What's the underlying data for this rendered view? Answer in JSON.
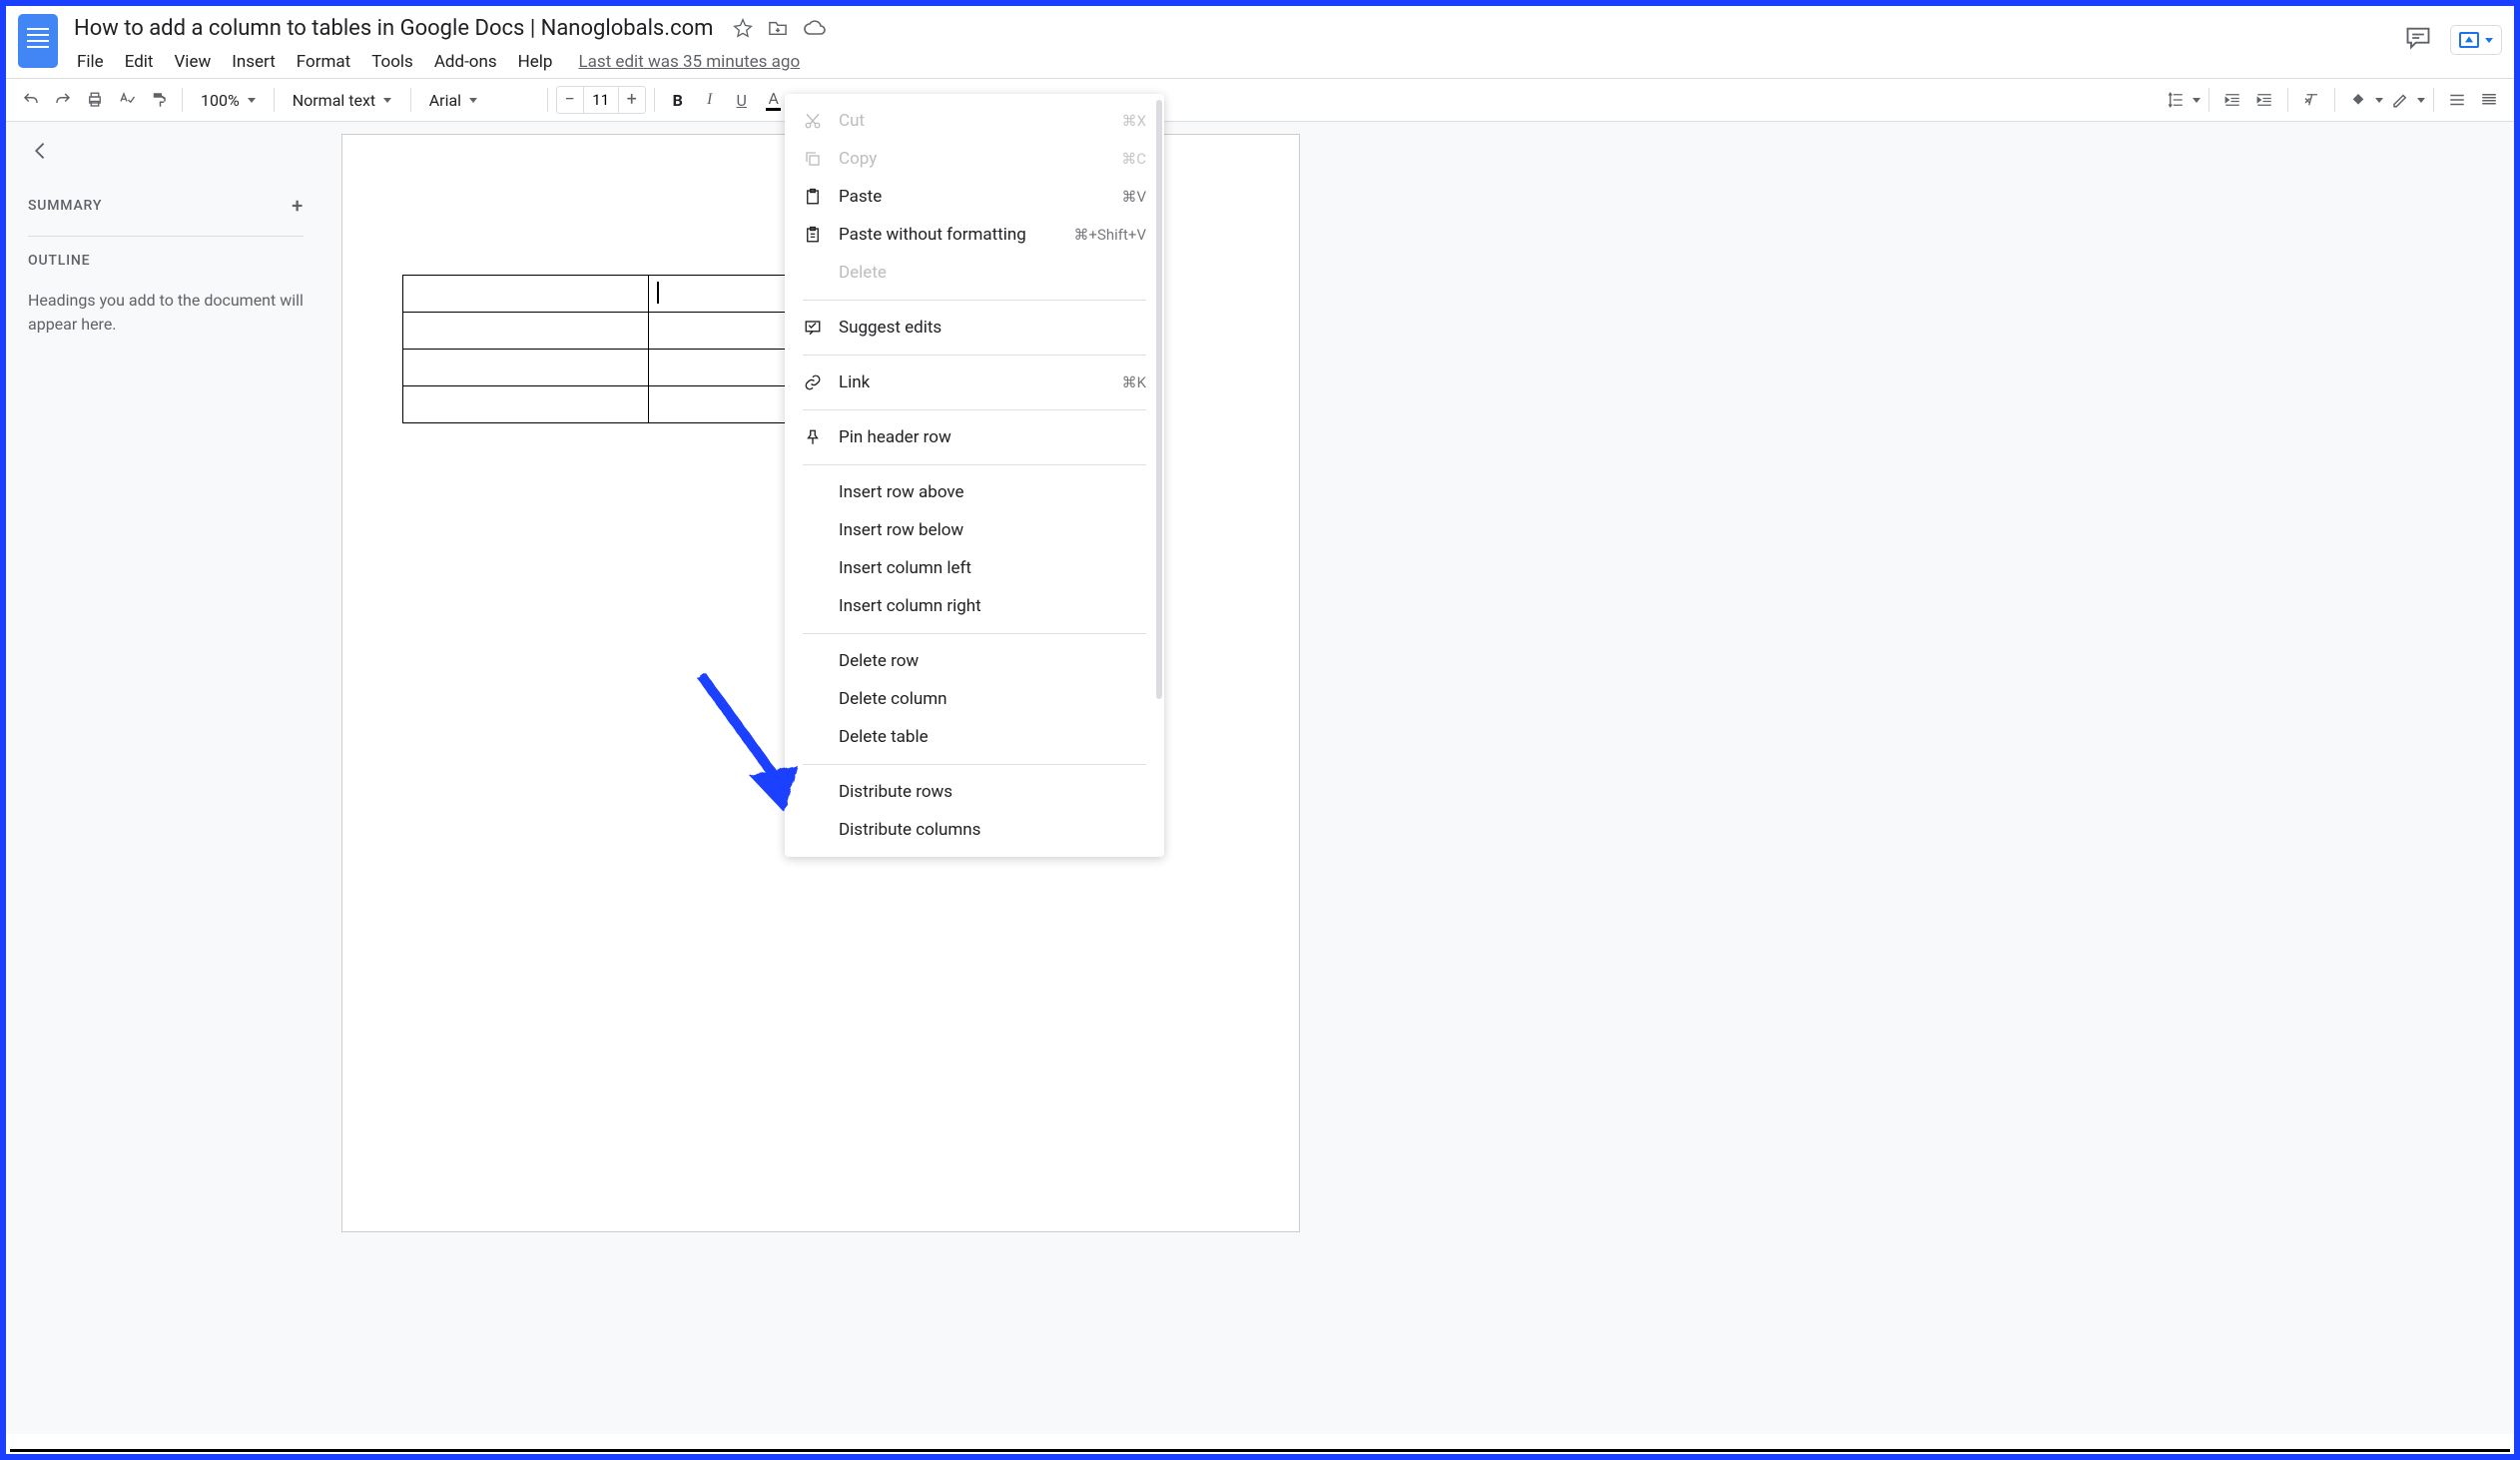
{
  "document": {
    "title": "How to add a column to tables in Google Docs | Nanoglobals.com",
    "last_edit": "Last edit was 35 minutes ago"
  },
  "menubar": [
    "File",
    "Edit",
    "View",
    "Insert",
    "Format",
    "Tools",
    "Add-ons",
    "Help"
  ],
  "toolbar": {
    "zoom": "100%",
    "style": "Normal text",
    "font": "Arial",
    "font_size": "11"
  },
  "outline": {
    "summary_label": "SUMMARY",
    "outline_label": "OUTLINE",
    "placeholder": "Headings you add to the document will appear here."
  },
  "table": {
    "rows": 4,
    "cols": 3,
    "cursor_row": 0,
    "cursor_col": 1
  },
  "context_menu": {
    "groups": [
      [
        {
          "icon": "cut-icon",
          "label": "Cut",
          "shortcut": "⌘X",
          "disabled": true
        },
        {
          "icon": "copy-icon",
          "label": "Copy",
          "shortcut": "⌘C",
          "disabled": true
        },
        {
          "icon": "paste-icon",
          "label": "Paste",
          "shortcut": "⌘V"
        },
        {
          "icon": "paste-plain-icon",
          "label": "Paste without formatting",
          "shortcut": "⌘+Shift+V"
        },
        {
          "label": "Delete",
          "disabled": true,
          "noicon": true
        }
      ],
      [
        {
          "icon": "suggest-icon",
          "label": "Suggest edits"
        }
      ],
      [
        {
          "icon": "link-icon",
          "label": "Link",
          "shortcut": "⌘K"
        }
      ],
      [
        {
          "icon": "pin-icon",
          "label": "Pin header row"
        }
      ],
      [
        {
          "label": "Insert row above",
          "noicon": true
        },
        {
          "label": "Insert row below",
          "noicon": true
        },
        {
          "label": "Insert column left",
          "noicon": true
        },
        {
          "label": "Insert column right",
          "noicon": true
        }
      ],
      [
        {
          "label": "Delete row",
          "noicon": true
        },
        {
          "label": "Delete column",
          "noicon": true
        },
        {
          "label": "Delete table",
          "noicon": true
        }
      ],
      [
        {
          "label": "Distribute rows",
          "noicon": true
        },
        {
          "label": "Distribute columns",
          "noicon": true
        }
      ]
    ]
  },
  "annotation": {
    "arrow_color": "#1a3fff",
    "border_color": "#1a3fff"
  }
}
